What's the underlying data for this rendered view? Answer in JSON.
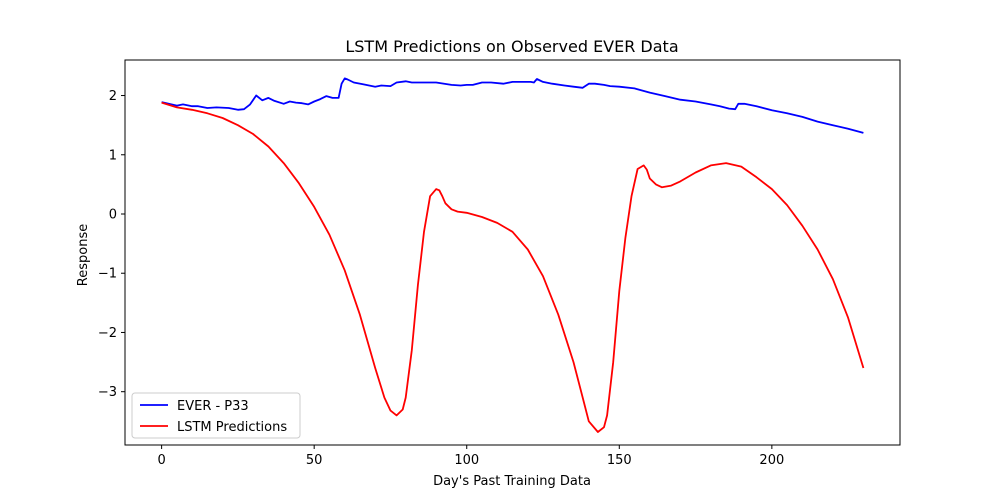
{
  "chart_data": {
    "type": "line",
    "title": "LSTM Predictions on Observed EVER Data",
    "xlabel": "Day's Past Training Data",
    "ylabel": "Response",
    "xlim": [
      -12,
      242
    ],
    "ylim": [
      -3.9,
      2.6
    ],
    "xticks": [
      0,
      50,
      100,
      150,
      200
    ],
    "yticks": [
      -3,
      -2,
      -1,
      0,
      1,
      2
    ],
    "xtick_labels": [
      "0",
      "50",
      "100",
      "150",
      "200"
    ],
    "ytick_labels": [
      "−3",
      "−2",
      "−1",
      "0",
      "1",
      "2"
    ],
    "grid": false,
    "legend_position": "lower-left",
    "series": [
      {
        "name": "EVER - P33",
        "color": "#0000ff",
        "x": [
          0,
          5,
          7,
          10,
          12,
          15,
          18,
          22,
          25,
          27,
          29,
          31,
          33,
          35,
          37,
          40,
          42,
          44,
          46,
          48,
          50,
          52,
          54,
          56,
          58,
          59,
          60,
          61,
          63,
          66,
          70,
          72,
          75,
          77,
          80,
          82,
          85,
          90,
          95,
          98,
          100,
          102,
          105,
          108,
          112,
          115,
          118,
          121,
          122,
          123,
          125,
          128,
          132,
          135,
          138,
          140,
          142,
          145,
          147,
          150,
          155,
          160,
          165,
          170,
          175,
          180,
          183,
          186,
          188,
          189,
          191,
          195,
          200,
          205,
          210,
          215,
          220,
          225,
          230
        ],
        "values": [
          1.89,
          1.83,
          1.85,
          1.82,
          1.82,
          1.79,
          1.8,
          1.79,
          1.76,
          1.77,
          1.85,
          2.0,
          1.92,
          1.96,
          1.91,
          1.86,
          1.9,
          1.88,
          1.87,
          1.85,
          1.9,
          1.94,
          1.99,
          1.96,
          1.96,
          2.2,
          2.29,
          2.27,
          2.22,
          2.19,
          2.15,
          2.17,
          2.16,
          2.22,
          2.24,
          2.22,
          2.22,
          2.22,
          2.18,
          2.17,
          2.18,
          2.18,
          2.22,
          2.22,
          2.2,
          2.23,
          2.23,
          2.23,
          2.22,
          2.28,
          2.23,
          2.2,
          2.17,
          2.15,
          2.13,
          2.2,
          2.2,
          2.18,
          2.16,
          2.15,
          2.12,
          2.05,
          1.99,
          1.93,
          1.9,
          1.85,
          1.82,
          1.78,
          1.77,
          1.86,
          1.86,
          1.82,
          1.75,
          1.7,
          1.64,
          1.56,
          1.5,
          1.44,
          1.37
        ]
      },
      {
        "name": "LSTM Predictions",
        "color": "#ff0000",
        "x": [
          0,
          5,
          10,
          15,
          20,
          25,
          30,
          35,
          40,
          45,
          50,
          55,
          60,
          65,
          70,
          73,
          75,
          77,
          79,
          80,
          82,
          84,
          86,
          88,
          90,
          91,
          92,
          93,
          95,
          97,
          100,
          105,
          110,
          115,
          120,
          125,
          130,
          135,
          138,
          140,
          143,
          145,
          146,
          148,
          150,
          152,
          154,
          156,
          158,
          159,
          160,
          162,
          164,
          167,
          170,
          175,
          180,
          185,
          190,
          195,
          200,
          205,
          210,
          215,
          220,
          225,
          230
        ],
        "values": [
          1.88,
          1.8,
          1.76,
          1.7,
          1.62,
          1.5,
          1.35,
          1.14,
          0.86,
          0.52,
          0.12,
          -0.35,
          -0.95,
          -1.7,
          -2.6,
          -3.1,
          -3.32,
          -3.4,
          -3.3,
          -3.1,
          -2.3,
          -1.2,
          -0.3,
          0.3,
          0.42,
          0.4,
          0.3,
          0.18,
          0.08,
          0.04,
          0.02,
          -0.05,
          -0.15,
          -0.3,
          -0.6,
          -1.05,
          -1.7,
          -2.5,
          -3.1,
          -3.5,
          -3.68,
          -3.6,
          -3.4,
          -2.5,
          -1.3,
          -0.4,
          0.3,
          0.76,
          0.82,
          0.75,
          0.6,
          0.5,
          0.45,
          0.48,
          0.55,
          0.7,
          0.82,
          0.86,
          0.8,
          0.62,
          0.42,
          0.15,
          -0.2,
          -0.6,
          -1.1,
          -1.75,
          -2.6
        ]
      }
    ]
  }
}
